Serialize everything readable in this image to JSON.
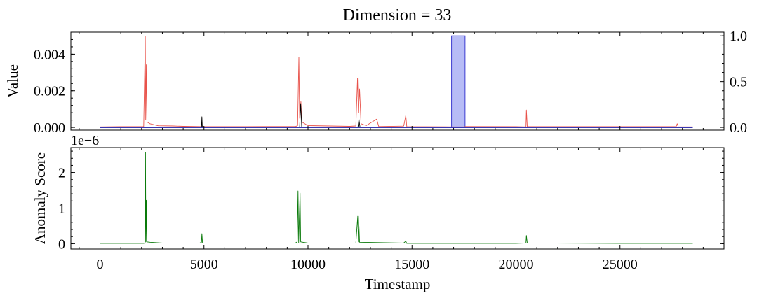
{
  "title": "Dimension = 33",
  "chart_data": [
    {
      "type": "line",
      "ylabel": "Value",
      "xlim": [
        -1400,
        30000
      ],
      "ylim": [
        -0.00015,
        0.0052
      ],
      "y_ticks": [
        0,
        0.002,
        0.004
      ],
      "y_tick_labels": [
        "0.000",
        "0.002",
        "0.004"
      ],
      "secondary_axis": {
        "ylim": [
          -0.03,
          1.04
        ],
        "ticks": [
          0,
          0.5,
          1
        ],
        "tick_labels": [
          "0.0",
          "0.5",
          "1.0"
        ],
        "label": "",
        "anomaly_region": {
          "x": [
            16900,
            17550
          ],
          "value": 1,
          "color": "#aab0f5"
        }
      },
      "series": [
        {
          "color": "#e8524a",
          "points": [
            [
              0,
              3e-05
            ],
            [
              1000,
              4e-05
            ],
            [
              2100,
              4e-05
            ],
            [
              2180,
              0.00496
            ],
            [
              2200,
              0.0004
            ],
            [
              2230,
              0.00342
            ],
            [
              2260,
              0.0003
            ],
            [
              2400,
              0.0002
            ],
            [
              2800,
              9e-05
            ],
            [
              3500,
              8e-05
            ],
            [
              4000,
              6e-05
            ],
            [
              5000,
              4e-05
            ],
            [
              7000,
              4e-05
            ],
            [
              8000,
              5e-05
            ],
            [
              9400,
              5e-05
            ],
            [
              9500,
              0.0001
            ],
            [
              9560,
              0.00382
            ],
            [
              9600,
              0.0005
            ],
            [
              9660,
              0.0014
            ],
            [
              9700,
              0.0003
            ],
            [
              10000,
              0.0001
            ],
            [
              11000,
              8e-05
            ],
            [
              12000,
              6e-05
            ],
            [
              12300,
              8e-05
            ],
            [
              12380,
              0.0027
            ],
            [
              12420,
              0.0008
            ],
            [
              12480,
              0.0021
            ],
            [
              12550,
              0.0002
            ],
            [
              12800,
              0.0001
            ],
            [
              13300,
              0.00045
            ],
            [
              13400,
              5e-05
            ],
            [
              14600,
              7e-05
            ],
            [
              14700,
              0.00065
            ],
            [
              14750,
              4e-05
            ],
            [
              17000,
              3e-05
            ],
            [
              17520,
              3e-05
            ],
            [
              17560,
              5e-05
            ],
            [
              20000,
              4e-05
            ],
            [
              20480,
              3e-05
            ],
            [
              20500,
              0.00095
            ],
            [
              20540,
              4e-05
            ],
            [
              22000,
              4e-05
            ],
            [
              25000,
              4e-05
            ],
            [
              27700,
              4e-05
            ],
            [
              27750,
              0.0002
            ],
            [
              27800,
              3e-05
            ],
            [
              28500,
              3e-05
            ]
          ]
        },
        {
          "color": "#000000",
          "points": [
            [
              0,
              1e-05
            ],
            [
              4000,
              1e-05
            ],
            [
              4880,
              1e-05
            ],
            [
              4900,
              0.00058
            ],
            [
              4920,
              1e-05
            ],
            [
              9600,
              1e-05
            ],
            [
              9650,
              0.0013
            ],
            [
              9700,
              1e-05
            ],
            [
              12400,
              1e-05
            ],
            [
              12450,
              0.00045
            ],
            [
              12500,
              1e-05
            ],
            [
              28500,
              1e-05
            ]
          ]
        },
        {
          "color": "#1a1aa6",
          "points": [
            [
              0,
              0
            ],
            [
              28500,
              0
            ]
          ]
        }
      ]
    },
    {
      "type": "line",
      "ylabel": "Anomaly Score",
      "xlabel": "Timestamp",
      "offset_label": "1e−6",
      "xlim": [
        -1400,
        30000
      ],
      "ylim": [
        -0.15,
        2.7
      ],
      "x_ticks": [
        0,
        5000,
        10000,
        15000,
        20000,
        25000
      ],
      "x_tick_labels": [
        "0",
        "5000",
        "10000",
        "15000",
        "20000",
        "25000"
      ],
      "y_ticks": [
        0,
        1,
        2
      ],
      "y_tick_labels": [
        "0",
        "1",
        "2"
      ],
      "series": [
        {
          "color": "#0a7a0a",
          "points": [
            [
              0,
              0.01
            ],
            [
              2100,
              0.01
            ],
            [
              2170,
              0.02
            ],
            [
              2190,
              2.57
            ],
            [
              2205,
              0.05
            ],
            [
              2230,
              1.22
            ],
            [
              2250,
              0.05
            ],
            [
              2400,
              0.04
            ],
            [
              3000,
              0.02
            ],
            [
              4800,
              0.02
            ],
            [
              4880,
              0.04
            ],
            [
              4900,
              0.28
            ],
            [
              4930,
              0.02
            ],
            [
              9400,
              0.02
            ],
            [
              9480,
              0.05
            ],
            [
              9520,
              1.48
            ],
            [
              9550,
              0.03
            ],
            [
              9620,
              1.42
            ],
            [
              9650,
              0.05
            ],
            [
              9750,
              0.04
            ],
            [
              10000,
              0.02
            ],
            [
              12300,
              0.02
            ],
            [
              12390,
              0.77
            ],
            [
              12420,
              0.05
            ],
            [
              12450,
              0.5
            ],
            [
              12480,
              0.04
            ],
            [
              14600,
              0.02
            ],
            [
              14700,
              0.07
            ],
            [
              14750,
              0.01
            ],
            [
              20000,
              0.01
            ],
            [
              20480,
              0.02
            ],
            [
              20500,
              0.23
            ],
            [
              20540,
              0.02
            ],
            [
              25000,
              0.01
            ],
            [
              28500,
              0.01
            ]
          ]
        }
      ]
    }
  ]
}
